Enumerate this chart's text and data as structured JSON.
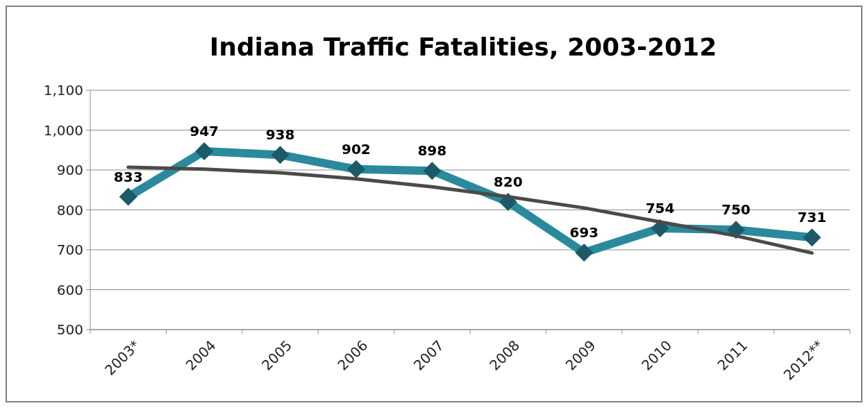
{
  "chart_data": {
    "type": "line",
    "title": "Indiana Traffic Fatalities, 2003-2012",
    "categories": [
      "2003*",
      "2004",
      "2005",
      "2006",
      "2007",
      "2008",
      "2009",
      "2010",
      "2011",
      "2012**"
    ],
    "series": [
      {
        "color": "#2a8a9c",
        "marker": "diamond",
        "values": [
          833,
          947,
          938,
          902,
          898,
          820,
          693,
          754,
          750,
          731
        ],
        "value_labels": [
          "833",
          "947",
          "938",
          "902",
          "898",
          "820",
          "693",
          "754",
          "750",
          "731"
        ]
      },
      {
        "color": "#4a4a4a",
        "marker": "none",
        "values": [
          907,
          902,
          893,
          878,
          858,
          833,
          805,
          770,
          735,
          692
        ]
      }
    ],
    "ylim": [
      500,
      1100
    ],
    "yticks": [
      {
        "value": 500,
        "label": "500"
      },
      {
        "value": 600,
        "label": "600"
      },
      {
        "value": 700,
        "label": "700"
      },
      {
        "value": 800,
        "label": "800"
      },
      {
        "value": 900,
        "label": "900"
      },
      {
        "value": 1000,
        "label": "1,000"
      },
      {
        "value": 1100,
        "label": "1,100"
      }
    ],
    "grid": "y"
  }
}
